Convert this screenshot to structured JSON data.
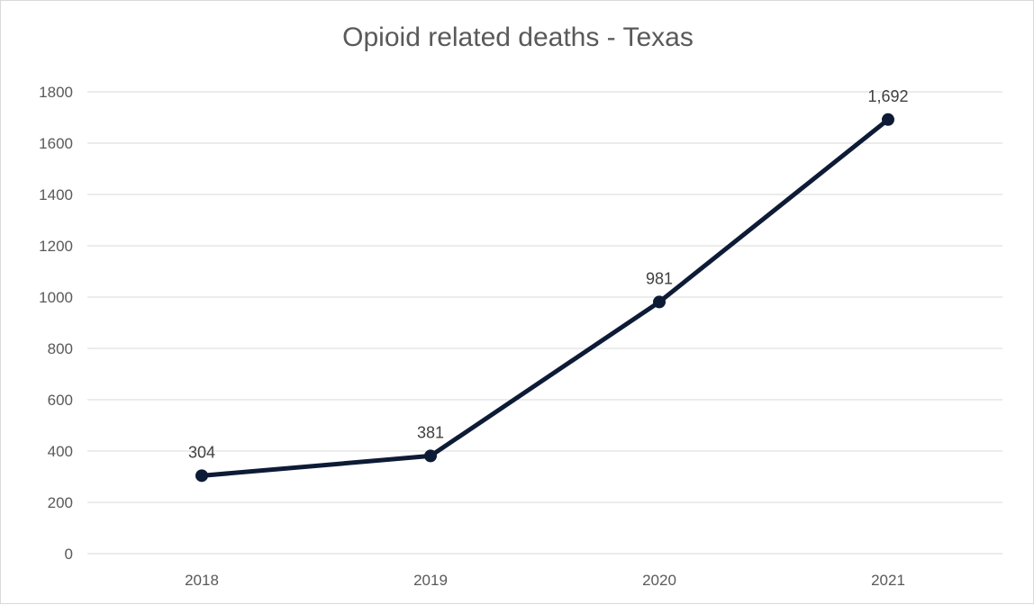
{
  "chart_data": {
    "type": "line",
    "title": "Opioid related deaths - Texas",
    "xlabel": "",
    "ylabel": "",
    "categories": [
      "2018",
      "2019",
      "2020",
      "2021"
    ],
    "series": [
      {
        "values": [
          304,
          381,
          981,
          1692
        ],
        "data_labels": [
          "304",
          "381",
          "981",
          "1,692"
        ],
        "color": "#0d1b36"
      }
    ],
    "y_ticks": [
      "0",
      "200",
      "400",
      "600",
      "800",
      "1000",
      "1200",
      "1400",
      "1600",
      "1800"
    ],
    "ylim": [
      0,
      1800
    ],
    "grid": true,
    "legend": "none",
    "colors": {
      "gridline": "#d9d9d9",
      "text": "#595959"
    }
  }
}
